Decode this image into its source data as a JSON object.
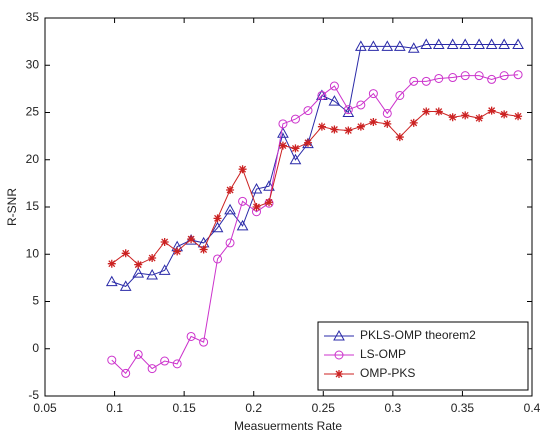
{
  "chart_data": {
    "type": "line",
    "x_label": "Measuerments Rate",
    "y_label": "R-SNR",
    "x": [
      0.098,
      0.108,
      0.117,
      0.127,
      0.136,
      0.145,
      0.155,
      0.164,
      0.174,
      0.183,
      0.192,
      0.202,
      0.211,
      0.221,
      0.23,
      0.239,
      0.249,
      0.258,
      0.268,
      0.277,
      0.286,
      0.296,
      0.305,
      0.315,
      0.324,
      0.333,
      0.343,
      0.352,
      0.362,
      0.371,
      0.38,
      0.39
    ],
    "series": [
      {
        "name": "PKLS-OMP theorem2",
        "color": "#2a2aa8",
        "marker": "triangle",
        "values": [
          7.1,
          6.6,
          8,
          7.8,
          8.3,
          10.8,
          11.5,
          11.2,
          12.8,
          14.7,
          13,
          16.9,
          17.2,
          22.8,
          20,
          21.7,
          26.8,
          26.2,
          25,
          32,
          32,
          32,
          32,
          31.8,
          32.2,
          32.2,
          32.2,
          32.2,
          32.2,
          32.2,
          32.2,
          32.2
        ]
      },
      {
        "name": "LS-OMP",
        "color": "#cc33cc",
        "marker": "circle",
        "values": [
          -1.2,
          -2.6,
          -0.6,
          -2.1,
          -1.3,
          -1.6,
          1.3,
          0.7,
          9.5,
          11.2,
          15.6,
          14.5,
          15.4,
          23.8,
          24.3,
          25.2,
          26.8,
          27.8,
          25.3,
          25.8,
          27,
          24.9,
          26.8,
          28.3,
          28.3,
          28.6,
          28.7,
          28.9,
          28.9,
          28.5,
          28.9,
          29
        ]
      },
      {
        "name": "OMP-PKS",
        "color": "#cc2222",
        "marker": "star",
        "values": [
          9,
          10.1,
          8.9,
          9.6,
          11.3,
          10.3,
          11.6,
          10.5,
          13.8,
          16.8,
          19,
          15,
          15.5,
          21.5,
          21.2,
          21.8,
          23.5,
          23.2,
          23.1,
          23.5,
          24,
          23.8,
          22.4,
          23.9,
          25.1,
          25.1,
          24.5,
          24.7,
          24.4,
          25.2,
          24.8,
          24.6
        ]
      }
    ],
    "xlim": [
      0.05,
      0.4
    ],
    "xticks": [
      0.05,
      0.1,
      0.15,
      0.2,
      0.25,
      0.3,
      0.35,
      0.4
    ],
    "ylim": [
      -5,
      35
    ],
    "yticks": [
      -5,
      0,
      5,
      10,
      15,
      20,
      25,
      30,
      35
    ],
    "legend": "lower right"
  }
}
